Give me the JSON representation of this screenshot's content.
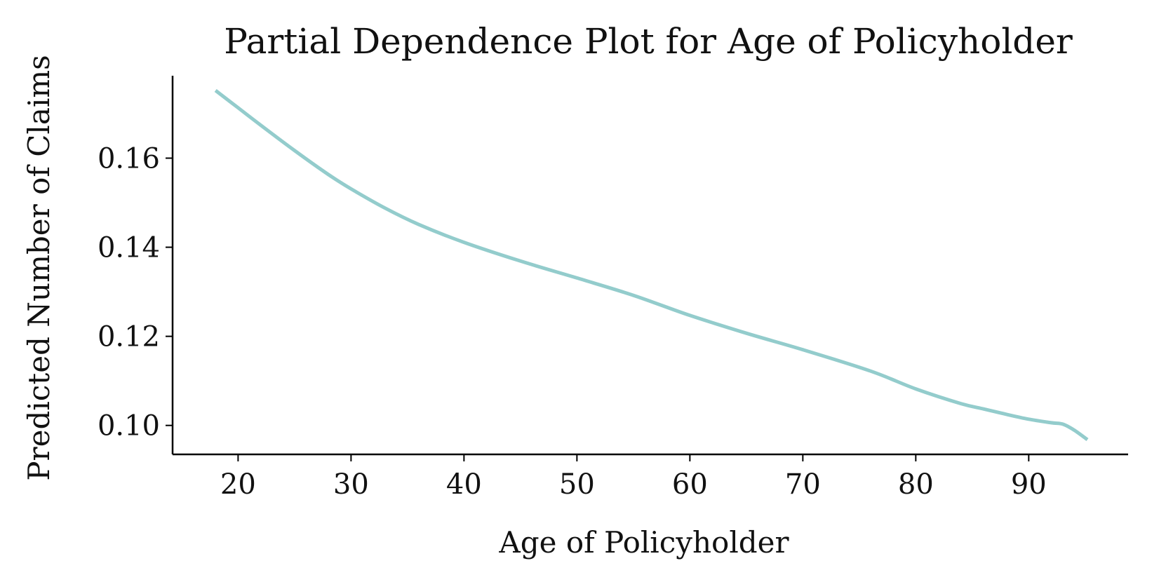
{
  "chart_data": {
    "type": "line",
    "title": "Partial Dependence Plot for Age of Policyholder",
    "xlabel": "Age of Policyholder",
    "ylabel": "Predicted Number of Claims",
    "xlim": [
      14.2,
      98.8
    ],
    "ylim": [
      0.0935,
      0.1785
    ],
    "xticks": [
      20,
      30,
      40,
      50,
      60,
      70,
      80,
      90
    ],
    "xtick_labels": [
      "20",
      "30",
      "40",
      "50",
      "60",
      "70",
      "80",
      "90"
    ],
    "yticks": [
      0.1,
      0.12,
      0.14,
      0.16
    ],
    "ytick_labels": [
      "0.10",
      "0.12",
      "0.14",
      "0.16"
    ],
    "grid": false,
    "series": [
      {
        "color": "#93cccc",
        "x": [
          18,
          20,
          22,
          25,
          28,
          30,
          33,
          36,
          40,
          45,
          50,
          55,
          60,
          65,
          70,
          76,
          80,
          84,
          86,
          88,
          90,
          92,
          93,
          94,
          95.2
        ],
        "y": [
          0.1752,
          0.1713,
          0.1674,
          0.1617,
          0.1563,
          0.1531,
          0.1488,
          0.1451,
          0.1411,
          0.1369,
          0.1331,
          0.1292,
          0.1247,
          0.1207,
          0.117,
          0.1122,
          0.1082,
          0.1049,
          0.1037,
          0.1025,
          0.1014,
          0.1006,
          0.1003,
          0.099,
          0.0968
        ]
      }
    ]
  }
}
